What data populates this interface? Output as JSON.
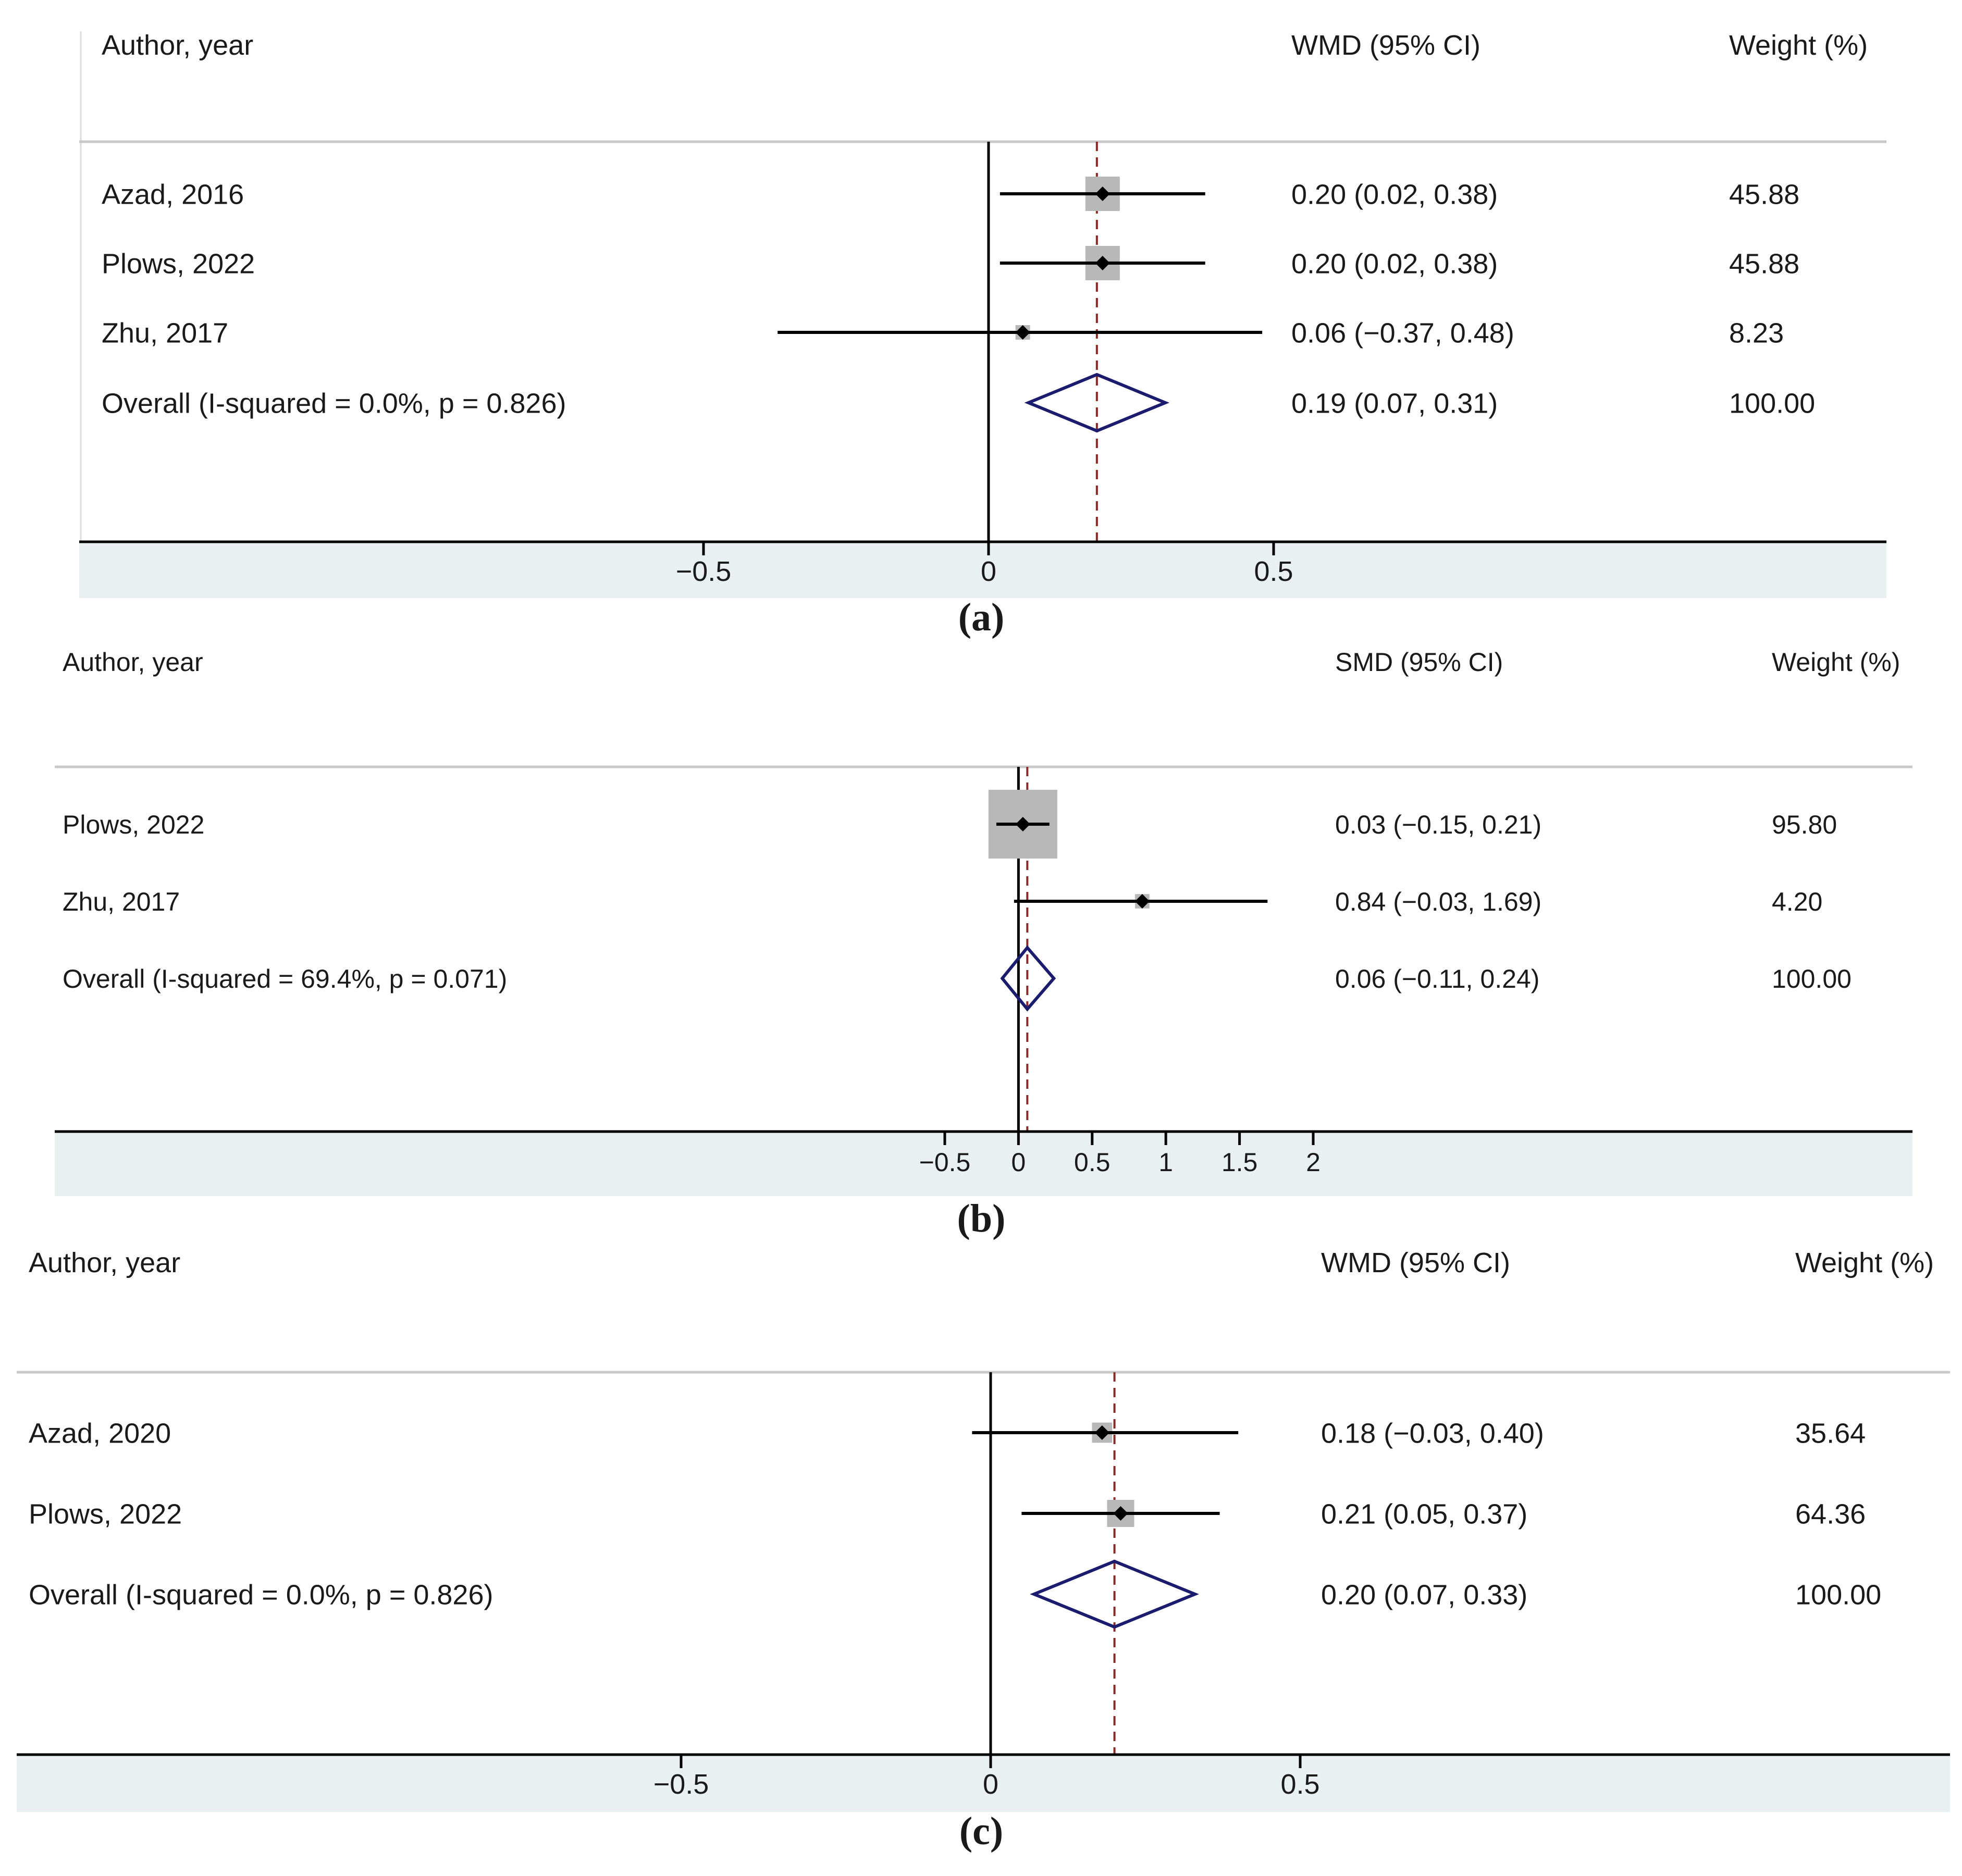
{
  "chart_data": [
    {
      "type": "forest",
      "panel_label": "(a)",
      "headers": {
        "study": "Author, year",
        "effect": "WMD (95% CI)",
        "weight": "Weight (%)"
      },
      "pooled_estimate": 0.19,
      "xlim": [
        -0.5,
        0.5
      ],
      "ticks": [
        -0.5,
        0,
        0.5
      ],
      "tick_labels": [
        "−0.5",
        "0",
        "0.5"
      ],
      "studies": [
        {
          "label": "Azad, 2016",
          "est": 0.2,
          "lo": 0.02,
          "hi": 0.38,
          "ci_text": "0.20 (0.02, 0.38)",
          "weight": 45.88,
          "weight_text": "45.88"
        },
        {
          "label": "Plows, 2022",
          "est": 0.2,
          "lo": 0.02,
          "hi": 0.38,
          "ci_text": "0.20 (0.02, 0.38)",
          "weight": 45.88,
          "weight_text": "45.88"
        },
        {
          "label": "Zhu, 2017",
          "est": 0.06,
          "lo": -0.37,
          "hi": 0.48,
          "ci_text": "0.06 (−0.37, 0.48)",
          "weight": 8.23,
          "weight_text": "8.23"
        }
      ],
      "overall": {
        "label": "Overall  (I-squared = 0.0%, p = 0.826)",
        "est": 0.19,
        "lo": 0.07,
        "hi": 0.31,
        "ci_text": "0.19 (0.07, 0.31)",
        "weight_text": "100.00"
      }
    },
    {
      "type": "forest",
      "panel_label": "(b)",
      "headers": {
        "study": "Author, year",
        "effect": "SMD (95% CI)",
        "weight": "Weight (%)"
      },
      "pooled_estimate": 0.06,
      "xlim": [
        -0.5,
        2
      ],
      "ticks": [
        -0.5,
        0,
        0.5,
        1,
        1.5,
        2
      ],
      "tick_labels": [
        "−0.5",
        "0",
        "0.5",
        "1",
        "1.5",
        "2"
      ],
      "studies": [
        {
          "label": "Plows, 2022",
          "est": 0.03,
          "lo": -0.15,
          "hi": 0.21,
          "ci_text": "0.03 (−0.15, 0.21)",
          "weight": 95.8,
          "weight_text": "95.80"
        },
        {
          "label": "Zhu, 2017",
          "est": 0.84,
          "lo": -0.03,
          "hi": 1.69,
          "ci_text": "0.84 (−0.03, 1.69)",
          "weight": 4.2,
          "weight_text": "4.20"
        }
      ],
      "overall": {
        "label": "Overall  (I-squared = 69.4%, p = 0.071)",
        "est": 0.06,
        "lo": -0.11,
        "hi": 0.24,
        "ci_text": "0.06 (−0.11, 0.24)",
        "weight_text": "100.00"
      }
    },
    {
      "type": "forest",
      "panel_label": "(c)",
      "headers": {
        "study": "Author, year",
        "effect": "WMD (95% CI)",
        "weight": "Weight (%)"
      },
      "pooled_estimate": 0.2,
      "xlim": [
        -0.5,
        0.5
      ],
      "ticks": [
        -0.5,
        0,
        0.5
      ],
      "tick_labels": [
        "−0.5",
        "0",
        "0.5"
      ],
      "studies": [
        {
          "label": "Azad, 2020",
          "est": 0.18,
          "lo": -0.03,
          "hi": 0.4,
          "ci_text": "0.18 (−0.03, 0.40)",
          "weight": 35.64,
          "weight_text": "35.64"
        },
        {
          "label": "Plows, 2022",
          "est": 0.21,
          "lo": 0.05,
          "hi": 0.37,
          "ci_text": "0.21 (0.05, 0.37)",
          "weight": 64.36,
          "weight_text": "64.36"
        }
      ],
      "overall": {
        "label": "Overall  (I-squared = 0.0%, p = 0.826)",
        "est": 0.2,
        "lo": 0.07,
        "hi": 0.33,
        "ci_text": "0.20 (0.07, 0.33)",
        "weight_text": "100.00"
      }
    }
  ],
  "colors": {
    "text": "#1a1a1a",
    "axis_band": "#e8f0f1",
    "separator": "#c8c8c8",
    "box": "#b8b8b8",
    "diamond": "#1c1c6e",
    "pooled_line": "#8b2a2a",
    "line": "#000000"
  }
}
